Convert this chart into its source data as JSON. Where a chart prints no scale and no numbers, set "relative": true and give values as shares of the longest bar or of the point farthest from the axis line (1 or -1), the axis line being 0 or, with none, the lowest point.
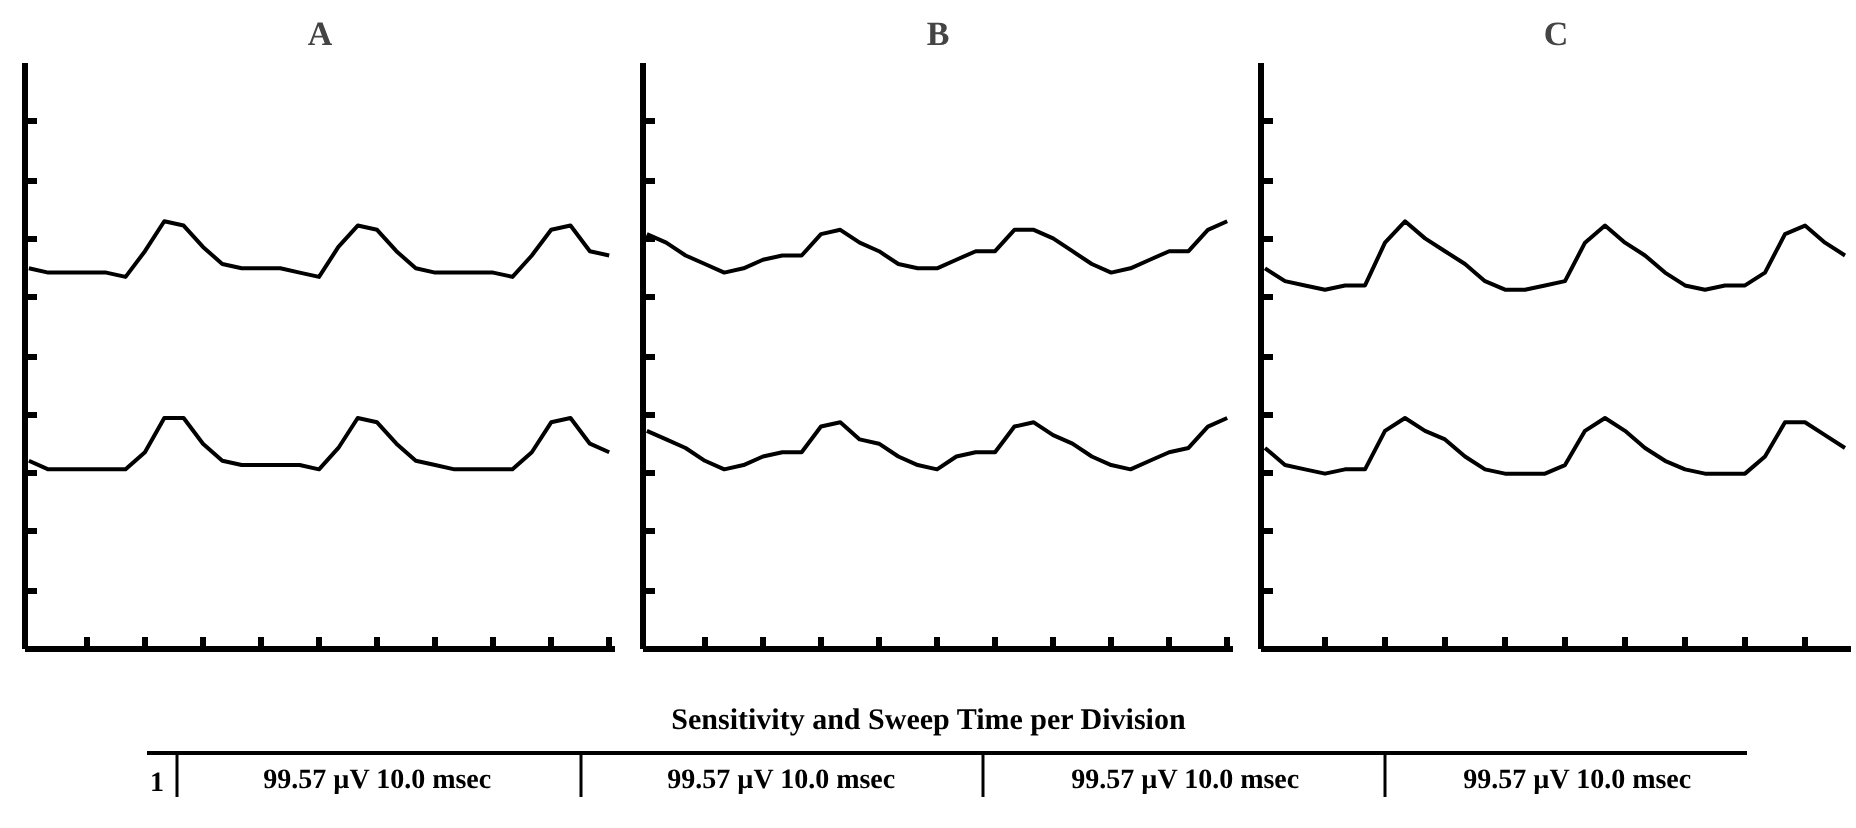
{
  "chart_data": [
    {
      "type": "line",
      "title": "A",
      "relative": true,
      "tick_labels": false,
      "categories": [
        null,
        null,
        null,
        null,
        null,
        null,
        null,
        null,
        null,
        null,
        null,
        null,
        null,
        null,
        null,
        null,
        null,
        null,
        null,
        null,
        null,
        null,
        null,
        null,
        null,
        null,
        null,
        null,
        null,
        null,
        null
      ],
      "series": [
        {
          "color": "#000000",
          "values": [
            0.89,
            0.88,
            0.88,
            0.88,
            0.88,
            0.87,
            0.93,
            1.0,
            0.99,
            0.94,
            0.9,
            0.89,
            0.89,
            0.89,
            0.88,
            0.87,
            0.94,
            0.99,
            0.98,
            0.93,
            0.89,
            0.88,
            0.88,
            0.88,
            0.88,
            0.87,
            0.92,
            0.98,
            0.99,
            0.93,
            0.92
          ]
        },
        {
          "color": "#000000",
          "values": [
            0.44,
            0.42,
            0.42,
            0.42,
            0.42,
            0.42,
            0.46,
            0.54,
            0.54,
            0.48,
            0.44,
            0.43,
            0.43,
            0.43,
            0.43,
            0.42,
            0.47,
            0.54,
            0.53,
            0.48,
            0.44,
            0.43,
            0.42,
            0.42,
            0.42,
            0.42,
            0.46,
            0.53,
            0.54,
            0.48,
            0.46
          ]
        }
      ]
    },
    {
      "type": "line",
      "title": "B",
      "relative": true,
      "tick_labels": false,
      "categories": [
        null,
        null,
        null,
        null,
        null,
        null,
        null,
        null,
        null,
        null,
        null,
        null,
        null,
        null,
        null,
        null,
        null,
        null,
        null,
        null,
        null,
        null,
        null,
        null,
        null,
        null,
        null,
        null,
        null,
        null,
        null
      ],
      "series": [
        {
          "color": "#000000",
          "values": [
            0.97,
            0.95,
            0.92,
            0.9,
            0.88,
            0.89,
            0.91,
            0.92,
            0.92,
            0.97,
            0.98,
            0.95,
            0.93,
            0.9,
            0.89,
            0.89,
            0.91,
            0.93,
            0.93,
            0.98,
            0.98,
            0.96,
            0.93,
            0.9,
            0.88,
            0.89,
            0.91,
            0.93,
            0.93,
            0.98,
            1.0
          ]
        },
        {
          "color": "#000000",
          "values": [
            0.51,
            0.49,
            0.47,
            0.44,
            0.42,
            0.43,
            0.45,
            0.46,
            0.46,
            0.52,
            0.53,
            0.49,
            0.48,
            0.45,
            0.43,
            0.42,
            0.45,
            0.46,
            0.46,
            0.52,
            0.53,
            0.5,
            0.48,
            0.45,
            0.43,
            0.42,
            0.44,
            0.46,
            0.47,
            0.52,
            0.54
          ]
        }
      ]
    },
    {
      "type": "line",
      "title": "C",
      "relative": true,
      "tick_labels": false,
      "categories": [
        null,
        null,
        null,
        null,
        null,
        null,
        null,
        null,
        null,
        null,
        null,
        null,
        null,
        null,
        null,
        null,
        null,
        null,
        null,
        null,
        null,
        null,
        null,
        null,
        null,
        null,
        null,
        null,
        null,
        null
      ],
      "series": [
        {
          "color": "#000000",
          "values": [
            0.89,
            0.86,
            0.85,
            0.84,
            0.85,
            0.85,
            0.95,
            1.0,
            0.96,
            0.93,
            0.9,
            0.86,
            0.84,
            0.84,
            0.85,
            0.86,
            0.95,
            0.99,
            0.95,
            0.92,
            0.88,
            0.85,
            0.84,
            0.85,
            0.85,
            0.88,
            0.97,
            0.99,
            0.95,
            0.92
          ]
        },
        {
          "color": "#000000",
          "values": [
            0.47,
            0.43,
            0.42,
            0.41,
            0.42,
            0.42,
            0.51,
            0.54,
            0.51,
            0.49,
            0.45,
            0.42,
            0.41,
            0.41,
            0.41,
            0.43,
            0.51,
            0.54,
            0.51,
            0.47,
            0.44,
            0.42,
            0.41,
            0.41,
            0.41,
            0.45,
            0.53,
            0.53,
            0.5,
            0.47
          ]
        }
      ]
    },
    {
      "type": "other",
      "title": "Sensitivity and Sweep Time per Division",
      "annotations": [
        "1",
        "99.57 µV  10.0 msec",
        "99.57 µV  10.0 msec",
        "99.57 µV  10.0 msec",
        "99.57 µV  10.0 msec"
      ]
    }
  ]
}
